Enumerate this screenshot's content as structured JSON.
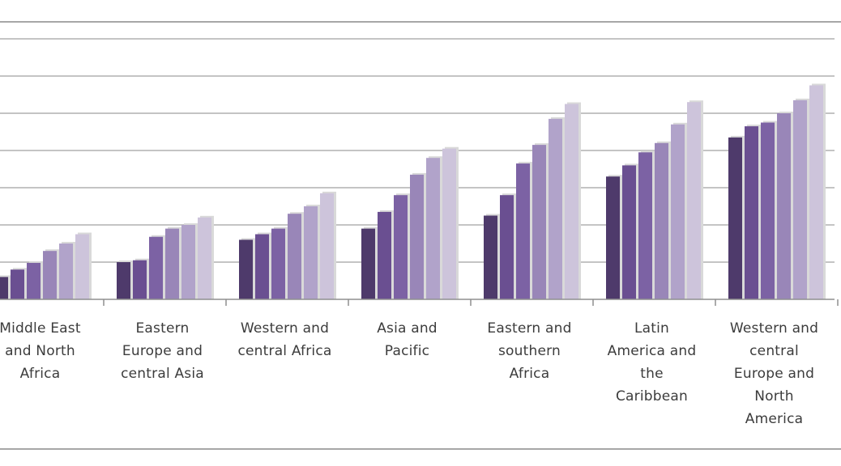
{
  "chart_data": {
    "type": "bar",
    "categories": [
      "Middle East\nand North\nAfrica",
      "Eastern\nEurope and\ncentral Asia",
      "Western and\ncentral Africa",
      "Asia and\nPacific",
      "Eastern and\nsouthern\nAfrica",
      "Latin\nAmerica and\nthe\nCaribbean",
      "Western and\ncentral\nEurope and\nNorth\nAmerica"
    ],
    "series": [
      {
        "values": [
          0.6,
          1.0,
          1.6,
          1.9,
          2.25,
          3.3,
          4.35
        ]
      },
      {
        "values": [
          0.8,
          1.05,
          1.75,
          2.35,
          2.8,
          3.6,
          4.65
        ]
      },
      {
        "values": [
          0.98,
          1.68,
          1.9,
          2.8,
          3.65,
          3.95,
          4.75
        ]
      },
      {
        "values": [
          1.3,
          1.9,
          2.3,
          3.35,
          4.15,
          4.2,
          5.0
        ]
      },
      {
        "values": [
          1.5,
          2.0,
          2.5,
          3.8,
          4.85,
          4.7,
          5.35
        ]
      },
      {
        "values": [
          1.75,
          2.2,
          2.85,
          4.05,
          5.25,
          5.3,
          5.75
        ]
      }
    ],
    "series_colors": [
      "#4e3a6b",
      "#6a4f91",
      "#7c62a4",
      "#9986b8",
      "#b1a3ca",
      "#cdc4db"
    ],
    "ylim": [
      0,
      7.5
    ],
    "grid": true,
    "title": "",
    "xlabel": "",
    "ylabel": ""
  }
}
